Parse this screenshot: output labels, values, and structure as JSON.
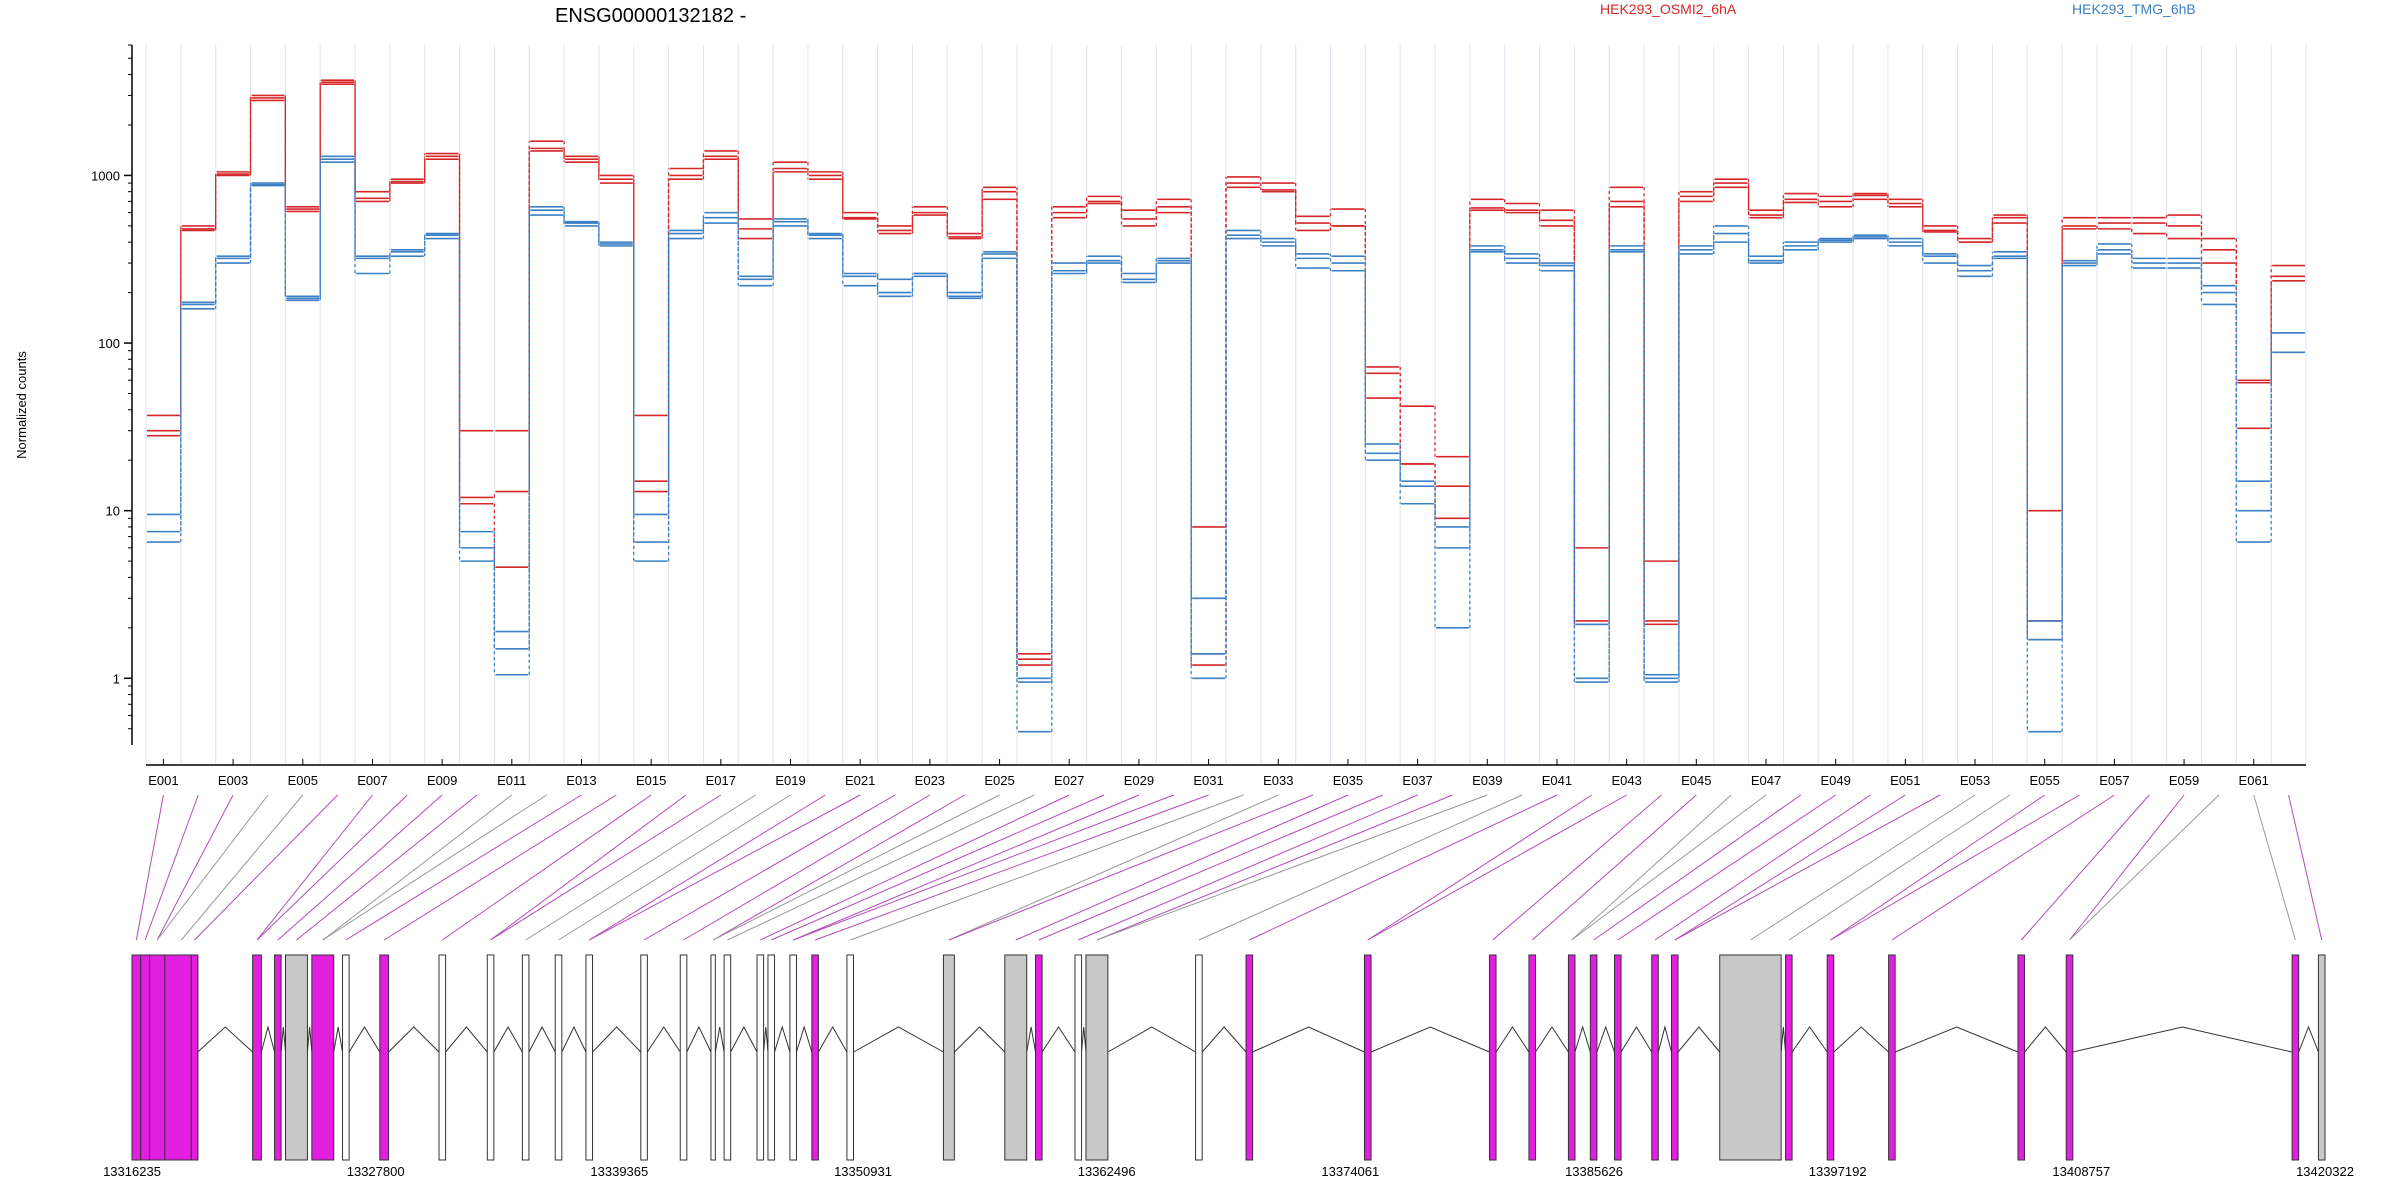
{
  "chart_data": {
    "type": "line",
    "title": "ENSG00000132182 -",
    "ylabel": "Normalized counts",
    "yscale": "log",
    "ylim": [
      0.4,
      6000
    ],
    "yticks": [
      {
        "v": 1,
        "label": "1"
      },
      {
        "v": 10,
        "label": "10"
      },
      {
        "v": 100,
        "label": "100"
      },
      {
        "v": 1000,
        "label": "1000"
      }
    ],
    "exon_labels": [
      "E001",
      "E003",
      "E005",
      "E007",
      "E009",
      "E011",
      "E013",
      "E015",
      "E017",
      "E019",
      "E021",
      "E023",
      "E025",
      "E027",
      "E029",
      "E031",
      "E033",
      "E035",
      "E037",
      "E039",
      "E041",
      "E043",
      "E045",
      "E047",
      "E049",
      "E051",
      "E053",
      "E055",
      "E057",
      "E059",
      "E061"
    ],
    "exons": [
      "E001",
      "E002",
      "E003",
      "E004",
      "E005",
      "E006",
      "E007",
      "E008",
      "E009",
      "E010",
      "E011",
      "E012",
      "E013",
      "E014",
      "E015",
      "E016",
      "E017",
      "E018",
      "E019",
      "E020",
      "E021",
      "E022",
      "E023",
      "E024",
      "E025",
      "E026",
      "E027",
      "E028",
      "E029",
      "E030",
      "E031",
      "E032",
      "E033",
      "E034",
      "E035",
      "E036",
      "E037",
      "E038",
      "E039",
      "E040",
      "E041",
      "E042",
      "E043",
      "E044",
      "E045",
      "E046",
      "E047",
      "E048",
      "E049",
      "E050",
      "E051",
      "E052",
      "E053",
      "E054",
      "E055",
      "E056",
      "E057",
      "E058",
      "E059",
      "E060",
      "E061",
      "E062"
    ],
    "series": [
      {
        "name": "HEK293_OSMI2_6hA",
        "color": "#d62728",
        "replicates": [
          [
            37,
            500,
            1050,
            3000,
            650,
            3700,
            800,
            950,
            1350,
            30,
            30,
            1600,
            1300,
            1000,
            37,
            1100,
            1400,
            550,
            1200,
            1050,
            600,
            500,
            650,
            450,
            850,
            1.4,
            650,
            750,
            620,
            720,
            8,
            980,
            900,
            570,
            630,
            72,
            42,
            21,
            720,
            680,
            620,
            6,
            850,
            5,
            800,
            950,
            620,
            780,
            750,
            780,
            720,
            500,
            420,
            580,
            10,
            560,
            560,
            560,
            580,
            420,
            60,
            290
          ],
          [
            30,
            480,
            1000,
            2800,
            630,
            3500,
            730,
            900,
            1250,
            12,
            13,
            1450,
            1200,
            950,
            15,
            1000,
            1300,
            480,
            1100,
            1000,
            550,
            470,
            600,
            430,
            800,
            1.3,
            600,
            700,
            550,
            650,
            1.4,
            900,
            820,
            520,
            500,
            66,
            19,
            14,
            640,
            620,
            540,
            2.2,
            700,
            2.2,
            750,
            900,
            580,
            720,
            700,
            760,
            680,
            470,
            400,
            560,
            2.2,
            480,
            520,
            520,
            500,
            360,
            31,
            250
          ],
          [
            28,
            470,
            1020,
            2900,
            610,
            3600,
            700,
            920,
            1300,
            11,
            4.6,
            1400,
            1250,
            900,
            13,
            950,
            1250,
            420,
            1050,
            950,
            560,
            450,
            580,
            420,
            720,
            1.2,
            560,
            680,
            500,
            600,
            1.2,
            850,
            800,
            470,
            500,
            47,
            19,
            9,
            620,
            600,
            500,
            2.1,
            650,
            2.1,
            700,
            850,
            560,
            690,
            650,
            720,
            650,
            460,
            400,
            520,
            1.7,
            500,
            480,
            450,
            420,
            300,
            58,
            235
          ]
        ]
      },
      {
        "name": "HEK293_TMG_6hB",
        "color": "#3b7fc4",
        "replicates": [
          [
            9.5,
            175,
            330,
            900,
            190,
            1300,
            330,
            360,
            450,
            7.5,
            1.9,
            650,
            530,
            400,
            9.5,
            470,
            600,
            250,
            550,
            450,
            260,
            240,
            260,
            200,
            350,
            1.0,
            300,
            330,
            260,
            320,
            3.0,
            470,
            420,
            340,
            330,
            25,
            15,
            8,
            380,
            340,
            300,
            2.1,
            380,
            1.05,
            380,
            500,
            330,
            400,
            420,
            440,
            420,
            340,
            290,
            350,
            2.2,
            310,
            390,
            320,
            320,
            220,
            15,
            115
          ],
          [
            7.5,
            170,
            320,
            880,
            185,
            1250,
            320,
            350,
            440,
            6.0,
            1.5,
            620,
            520,
            390,
            6.5,
            450,
            560,
            240,
            530,
            440,
            250,
            200,
            260,
            190,
            340,
            0.95,
            270,
            310,
            240,
            310,
            1.4,
            440,
            400,
            320,
            300,
            22,
            14,
            6,
            360,
            320,
            290,
            1.0,
            360,
            1.0,
            360,
            450,
            310,
            380,
            410,
            430,
            400,
            330,
            270,
            330,
            1.7,
            300,
            360,
            300,
            300,
            200,
            10,
            115
          ],
          [
            6.5,
            160,
            300,
            870,
            180,
            1200,
            260,
            330,
            420,
            5.0,
            1.05,
            580,
            500,
            380,
            5.0,
            420,
            520,
            220,
            500,
            420,
            220,
            190,
            250,
            185,
            320,
            0.48,
            260,
            300,
            230,
            300,
            1.0,
            420,
            380,
            280,
            270,
            20,
            11,
            2.0,
            350,
            300,
            270,
            0.95,
            350,
            0.95,
            340,
            400,
            300,
            360,
            400,
            420,
            380,
            300,
            250,
            320,
            0.48,
            290,
            340,
            280,
            280,
            170,
            6.5,
            88
          ]
        ]
      }
    ],
    "gene_model": {
      "coord_labels": [
        "13316235",
        "13327800",
        "13339365",
        "13350931",
        "13362496",
        "13374061",
        "13385626",
        "13397192",
        "13408757",
        "13420322"
      ],
      "range": [
        13316235,
        13420322
      ],
      "highlight_color": "#e21fe0",
      "grey_color": "#c8c8c8"
    }
  }
}
